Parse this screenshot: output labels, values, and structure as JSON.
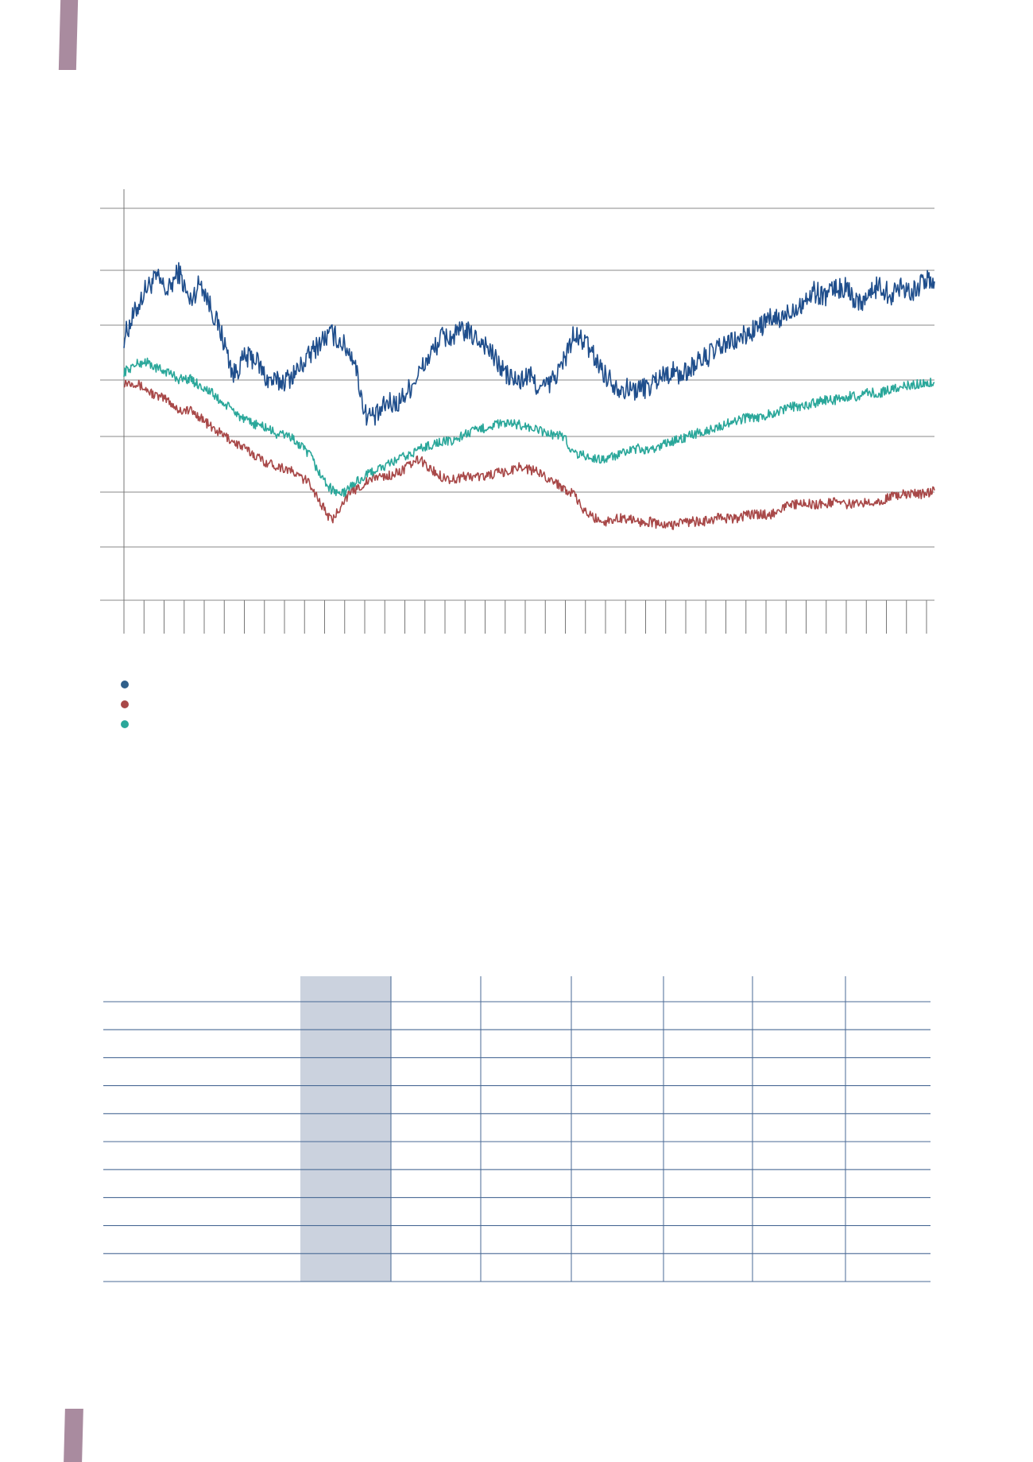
{
  "chart_data": {
    "type": "line",
    "title": "",
    "xlabel": "",
    "ylabel": "",
    "x_ticks": 41,
    "grid": true,
    "colors": {
      "axis": "#777777",
      "grid": "#888888"
    },
    "series": [
      {
        "color": "#1f4e8c",
        "values": [
          63,
          70,
          77,
          80,
          76,
          82,
          73,
          79,
          71,
          63,
          52,
          57,
          57,
          51,
          50,
          51,
          54,
          58,
          62,
          64,
          61,
          57,
          41,
          40,
          44,
          44,
          48,
          53,
          58,
          63,
          63,
          65,
          63,
          61,
          56,
          52,
          50,
          52,
          48,
          50,
          55,
          63,
          62,
          57,
          52,
          49,
          48,
          48,
          49,
          52,
          53,
          52,
          55,
          57,
          59,
          61,
          62,
          64,
          66,
          68,
          68,
          71,
          73,
          76,
          75,
          77,
          77,
          73,
          75,
          78,
          75,
          78,
          76,
          79,
          79
        ]
      },
      {
        "color": "#a84848",
        "values": [
          50,
          50,
          48,
          46,
          45,
          42,
          42,
          40,
          37,
          35,
          33,
          31,
          29,
          27,
          26,
          25,
          23,
          21,
          15,
          10,
          16,
          19,
          21,
          23,
          23,
          24,
          26,
          28,
          25,
          23,
          22,
          23,
          23,
          23,
          24,
          24,
          26,
          25,
          24,
          22,
          20,
          18,
          13,
          11,
          10,
          11,
          11,
          10,
          10,
          9,
          9,
          10,
          10,
          10,
          11,
          11,
          11,
          12,
          12,
          12,
          14,
          15,
          15,
          15,
          15,
          16,
          15,
          15,
          16,
          16,
          17,
          18,
          18,
          18,
          19
        ]
      },
      {
        "color": "#2aa79a",
        "values": [
          53,
          55,
          56,
          54,
          53,
          51,
          51,
          49,
          47,
          44,
          42,
          39,
          38,
          37,
          35,
          35,
          32,
          29,
          23,
          19,
          18,
          21,
          23,
          25,
          26,
          28,
          29,
          31,
          32,
          33,
          33,
          35,
          36,
          37,
          38,
          38,
          38,
          37,
          36,
          35,
          35,
          30,
          29,
          28,
          28,
          29,
          30,
          31,
          30,
          32,
          33,
          34,
          35,
          36,
          37,
          38,
          39,
          40,
          40,
          41,
          42,
          43,
          43,
          44,
          45,
          45,
          46,
          46,
          47,
          47,
          48,
          49,
          49,
          50,
          50
        ]
      }
    ],
    "legend": {
      "entries": [
        {
          "color": "#2f5f8a"
        },
        {
          "color": "#a84848"
        },
        {
          "color": "#2aa79a"
        }
      ]
    }
  },
  "table": {
    "row_count": 10,
    "column_count": 7,
    "highlight_column_color": "#cbd2de",
    "rule_color": "#4a6a95"
  },
  "decoration": {
    "tab_color": "#a98b9f"
  }
}
